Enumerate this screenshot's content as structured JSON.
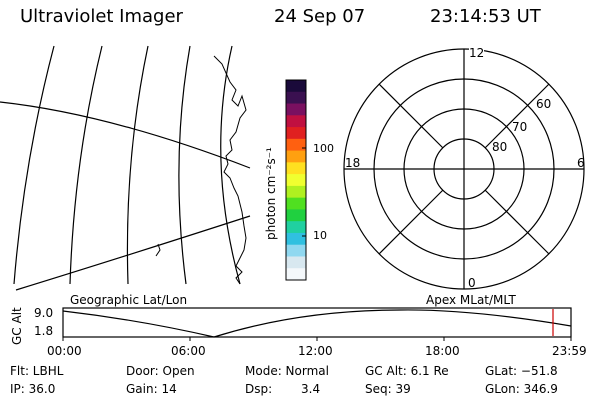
{
  "header": {
    "instrument": "Ultraviolet Imager",
    "date": "24 Sep 07",
    "time": "23:14:53 UT"
  },
  "colorbar": {
    "unit_label": "photon cm⁻²s⁻¹",
    "tick_100": "100",
    "tick_10": "10",
    "colors_top_to_bottom": [
      "#1a0a3a",
      "#3a1050",
      "#7a1060",
      "#c01040",
      "#e02020",
      "#ff6010",
      "#ffa010",
      "#ffe020",
      "#f0ff30",
      "#b0f020",
      "#50e020",
      "#20d040",
      "#20d0a0",
      "#30c0e0",
      "#90d8f0",
      "#d8e8f0",
      "#f4f8fb"
    ]
  },
  "polar_plot": {
    "label_top": "12",
    "label_left": "18",
    "label_right": "6",
    "label_bottom": "0",
    "ring_labels": [
      "60",
      "70",
      "80"
    ]
  },
  "timeline": {
    "left_title": "Geographic Lat/Lon",
    "right_title": "Apex MLat/MLT",
    "y_axis_label": "GC Alt",
    "y_max": "9.0",
    "y_min": "1.8",
    "x_ticks": [
      "00:00",
      "06:00",
      "12:00",
      "18:00",
      "23:59"
    ],
    "marker_color": "#cc0000"
  },
  "info": {
    "filter_label": "Flt: LBHL",
    "ip_label": "IP: 36.0",
    "door_label": "Door: Open",
    "gain_label": "Gain: 14",
    "mode_label": "Mode: Normal",
    "dsp_label": "Dsp:",
    "dsp_value": "3.4",
    "gc_alt_label": "GC Alt: 6.1 Re",
    "seq_label": "Seq: 39",
    "glat_label": "GLat: −51.8",
    "glon_label": "GLon: 346.9"
  }
}
